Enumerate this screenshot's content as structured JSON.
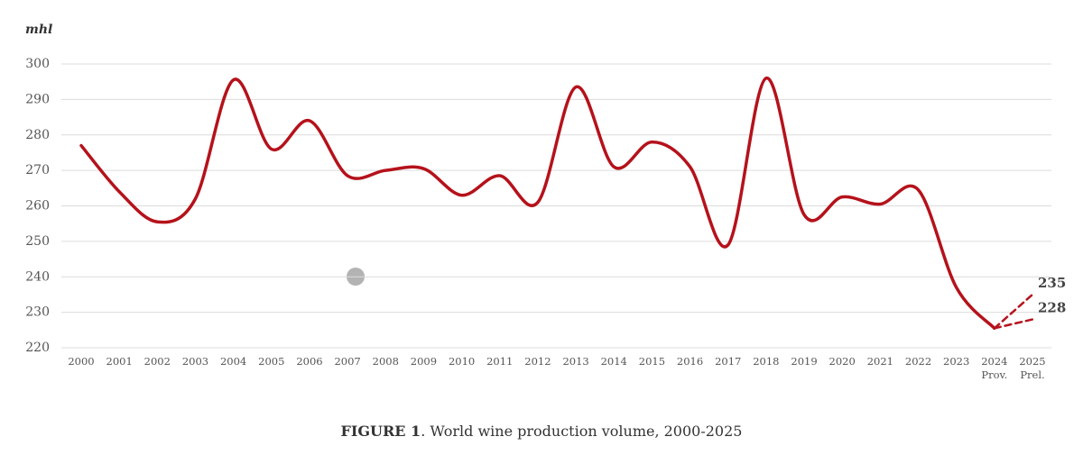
{
  "chart_data": {
    "type": "line",
    "y_label": "mhl",
    "caption": {
      "label": "FIGURE 1",
      "text": ". World wine production volume, 2000-2025"
    },
    "categories": [
      "2000",
      "2001",
      "2002",
      "2003",
      "2004",
      "2005",
      "2006",
      "2007",
      "2008",
      "2009",
      "2010",
      "2011",
      "2012",
      "2013",
      "2014",
      "2015",
      "2016",
      "2017",
      "2018",
      "2019",
      "2020",
      "2021",
      "2022",
      "2023",
      "2024 Prov.",
      "2025 Prel."
    ],
    "series": [
      {
        "color": "#b5121b",
        "dashed": false,
        "values": [
          277,
          264,
          255.5,
          262,
          295.5,
          276,
          284,
          268.5,
          270,
          270.5,
          263,
          268.5,
          261,
          293.5,
          271,
          278,
          271,
          249,
          296,
          257.5,
          262.5,
          260.5,
          264.5,
          237,
          225.5,
          null
        ]
      },
      {
        "color": "#b5121b",
        "dashed": true,
        "labeled": true,
        "values": [
          null,
          null,
          null,
          null,
          null,
          null,
          null,
          null,
          null,
          null,
          null,
          null,
          null,
          null,
          null,
          null,
          null,
          null,
          null,
          null,
          null,
          null,
          null,
          null,
          225.5,
          235
        ]
      },
      {
        "color": "#b5121b",
        "dashed": true,
        "labeled": true,
        "values": [
          null,
          null,
          null,
          null,
          null,
          null,
          null,
          null,
          null,
          null,
          null,
          null,
          null,
          null,
          null,
          null,
          null,
          null,
          null,
          null,
          null,
          null,
          null,
          null,
          225.5,
          228
        ]
      }
    ],
    "ylim": [
      220,
      300
    ],
    "yticks": [
      220,
      230,
      240,
      250,
      260,
      270,
      280,
      290,
      300
    ],
    "grid": true
  }
}
